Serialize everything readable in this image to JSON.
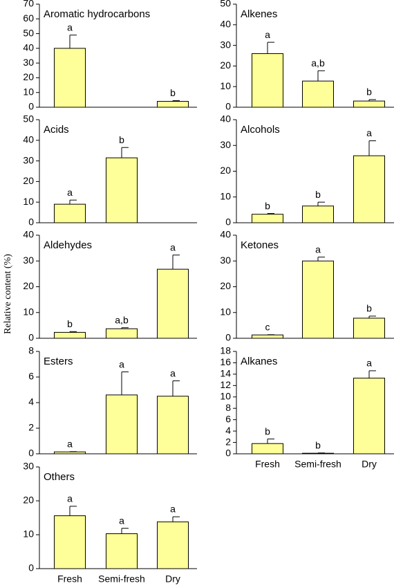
{
  "y_label": "Relative content (%)",
  "categories": [
    "Fresh",
    "Semi-fresh",
    "Dry"
  ],
  "chart_data": [
    {
      "type": "bar",
      "title": "Aromatic hydrocarbons",
      "color": "#ffff99",
      "values": [
        40,
        null,
        4
      ],
      "errors": [
        9,
        null,
        0.5
      ],
      "annotations": [
        "a",
        null,
        "b"
      ],
      "ylim": [
        0,
        70
      ],
      "yticks": [
        0,
        10,
        20,
        30,
        40,
        50,
        60,
        70
      ]
    },
    {
      "type": "bar",
      "title": "Alkenes",
      "color": "#ffff99",
      "values": [
        26,
        12.7,
        3
      ],
      "errors": [
        5.5,
        5,
        0.7
      ],
      "annotations": [
        "a",
        "a,b",
        "b"
      ],
      "ylim": [
        0,
        50
      ],
      "yticks": [
        0,
        10,
        20,
        30,
        40,
        50
      ]
    },
    {
      "type": "bar",
      "title": "Acids",
      "color": "#ffff99",
      "values": [
        9,
        31.5,
        null
      ],
      "errors": [
        2,
        5,
        null
      ],
      "annotations": [
        "a",
        "b",
        null
      ],
      "ylim": [
        0,
        50
      ],
      "yticks": [
        0,
        10,
        20,
        30,
        40,
        50
      ]
    },
    {
      "type": "bar",
      "title": "Alcohols",
      "color": "#ffff99",
      "values": [
        3.3,
        6.5,
        26
      ],
      "errors": [
        0.3,
        1.5,
        5.8
      ],
      "annotations": [
        "b",
        "b",
        "a"
      ],
      "ylim": [
        0,
        40
      ],
      "yticks": [
        0,
        10,
        20,
        30,
        40
      ]
    },
    {
      "type": "bar",
      "title": "Aldehydes",
      "color": "#ffff99",
      "values": [
        2.3,
        3.7,
        26.8
      ],
      "errors": [
        0.3,
        0.4,
        5.5
      ],
      "annotations": [
        "b",
        "a,b",
        "a"
      ],
      "ylim": [
        0,
        40
      ],
      "yticks": [
        0,
        10,
        20,
        30,
        40
      ]
    },
    {
      "type": "bar",
      "title": "Ketones",
      "color": "#ffff99",
      "values": [
        1.3,
        30,
        7.8
      ],
      "errors": [
        0.1,
        1.5,
        0.8
      ],
      "annotations": [
        "c",
        "a",
        "b"
      ],
      "ylim": [
        0,
        40
      ],
      "yticks": [
        0,
        10,
        20,
        30,
        40
      ]
    },
    {
      "type": "bar",
      "title": "Esters",
      "color": "#ffff99",
      "values": [
        0.15,
        4.6,
        4.5
      ],
      "errors": [
        0.02,
        1.8,
        1.2
      ],
      "annotations": [
        "a",
        "a",
        "a"
      ],
      "ylim": [
        0,
        8
      ],
      "yticks": [
        0,
        2,
        4,
        6,
        8
      ]
    },
    {
      "type": "bar",
      "title": "Alkanes",
      "color": "#ffff99",
      "values": [
        1.8,
        0.1,
        13.3
      ],
      "errors": [
        0.8,
        0.05,
        1.3
      ],
      "annotations": [
        "b",
        "b",
        "a"
      ],
      "ylim": [
        0,
        18
      ],
      "yticks": [
        0,
        2,
        4,
        6,
        8,
        10,
        12,
        14,
        16,
        18
      ]
    },
    {
      "type": "bar",
      "title": "Others",
      "color": "#ffff99",
      "values": [
        15.6,
        10.3,
        13.8
      ],
      "errors": [
        2.8,
        1.6,
        1.5
      ],
      "annotations": [
        "a",
        "a",
        "a"
      ],
      "ylim": [
        0,
        30
      ],
      "yticks": [
        0,
        10,
        20,
        30
      ]
    }
  ]
}
